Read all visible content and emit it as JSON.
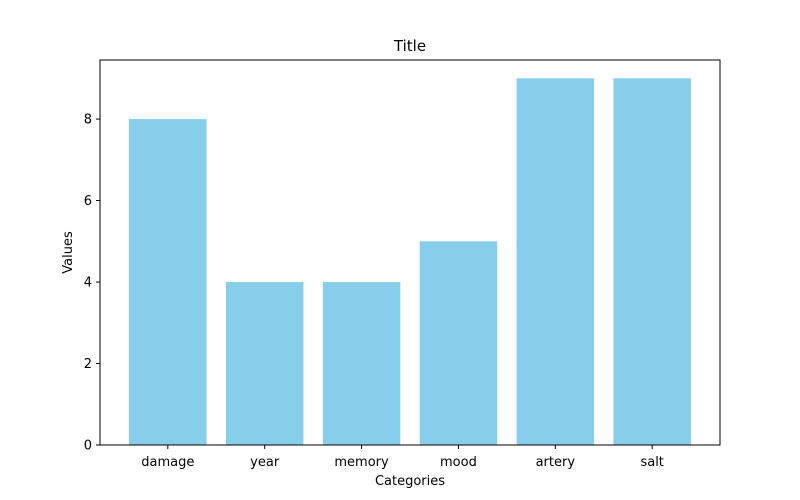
{
  "chart_data": {
    "type": "bar",
    "title": "Title",
    "xlabel": "Categories",
    "ylabel": "Values",
    "categories": [
      "damage",
      "year",
      "memory",
      "mood",
      "artery",
      "salt"
    ],
    "values": [
      8,
      4,
      4,
      5,
      9,
      9
    ],
    "ylim": [
      0,
      9.45
    ],
    "yticks": [
      0,
      2,
      4,
      6,
      8
    ],
    "bar_color": "#87ceeb",
    "grid": false,
    "legend": "none"
  }
}
